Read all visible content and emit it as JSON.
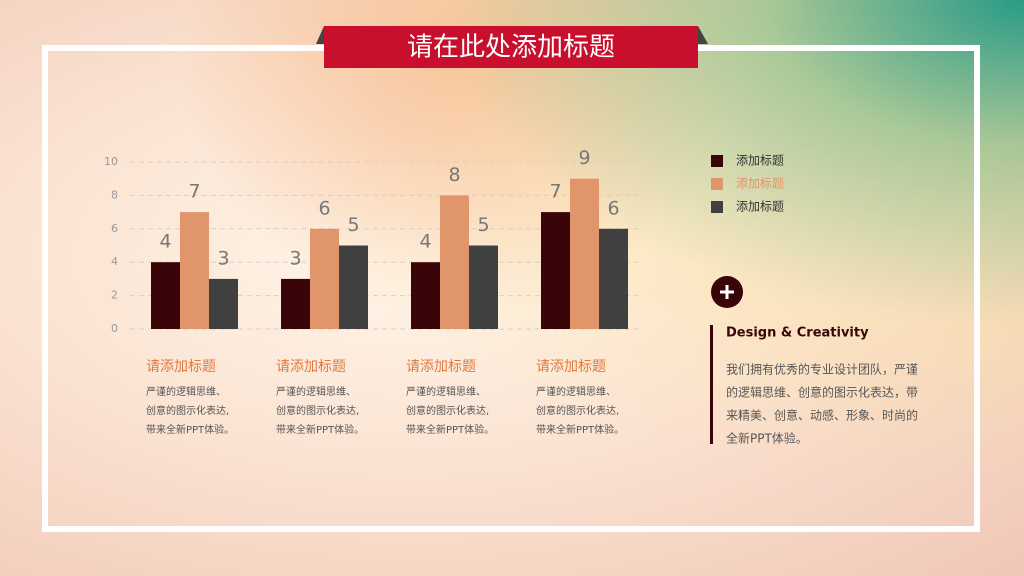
{
  "title": "请在此处添加标题",
  "chart_data": {
    "type": "bar",
    "categories": [
      "请添加标题",
      "请添加标题",
      "请添加标题",
      "请添加标题"
    ],
    "series": [
      {
        "name": "添加标题",
        "color": "#3a0508",
        "values": [
          4,
          3,
          4,
          7
        ]
      },
      {
        "name": "添加标题",
        "color": "#e0956a",
        "values": [
          7,
          6,
          8,
          9
        ]
      },
      {
        "name": "添加标题",
        "color": "#404040",
        "values": [
          3,
          5,
          5,
          6
        ]
      }
    ],
    "ylim": [
      0,
      10
    ],
    "yticks": [
      0,
      2,
      4,
      6,
      8,
      10
    ],
    "grid": true,
    "legend": "right"
  },
  "group_descriptions": [
    [
      "严谨的逻辑思维、",
      "创意的图示化表达,",
      "带来全新PPT体验。"
    ],
    [
      "严谨的逻辑思维、",
      "创意的图示化表达,",
      "带来全新PPT体验。"
    ],
    [
      "严谨的逻辑思维、",
      "创意的图示化表达,",
      "带来全新PPT体验。"
    ],
    [
      "严谨的逻辑思维、",
      "创意的图示化表达,",
      "带来全新PPT体验。"
    ]
  ],
  "side_panel": {
    "heading": "Design & Creativity",
    "lines": [
      "我们拥有优秀的专业设计团队，严谨",
      "的逻辑思维、创意的图示化表达，带",
      "来精美、创意、动感、形象、时尚的",
      "全新PPT体验。"
    ]
  }
}
